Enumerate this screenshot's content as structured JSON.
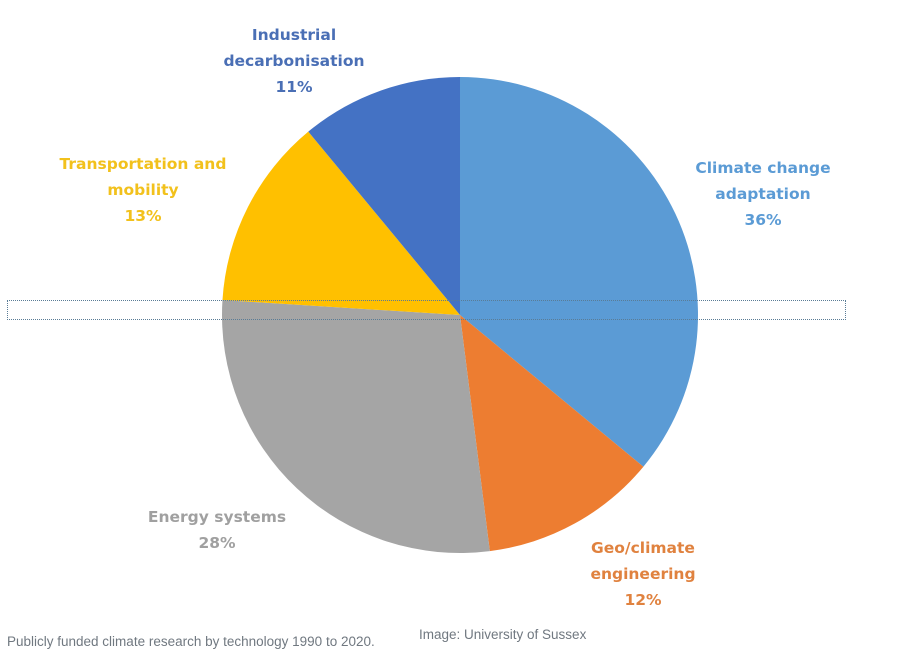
{
  "chart_data": {
    "type": "pie",
    "title": "",
    "start_angle": "top",
    "direction": "clockwise",
    "slices": [
      {
        "label_lines": [
          "Climate change",
          "adaptation"
        ],
        "value": 36,
        "value_label": "36%",
        "color": "#5b9bd5",
        "label_color": "#5b9bd5"
      },
      {
        "label_lines": [
          "Geo/climate",
          "engineering"
        ],
        "value": 12,
        "value_label": "12%",
        "color": "#ed7d31",
        "label_color": "#e0823f"
      },
      {
        "label_lines": [
          "Energy systems"
        ],
        "value": 28,
        "value_label": "28%",
        "color": "#a5a5a5",
        "label_color": "#a0a0a0"
      },
      {
        "label_lines": [
          "Transportation and",
          "mobility"
        ],
        "value": 13,
        "value_label": "13%",
        "color": "#ffc000",
        "label_color": "#f2c11c"
      },
      {
        "label_lines": [
          "Industrial",
          "decarbonisation"
        ],
        "value": 11,
        "value_label": "11%",
        "color": "#4472c4",
        "label_color": "#4a6fb5"
      }
    ],
    "legend": "none"
  },
  "caption": {
    "text": "Publicly funded climate research by technology 1990 to 2020.",
    "credit": "Image: University of Sussex"
  }
}
